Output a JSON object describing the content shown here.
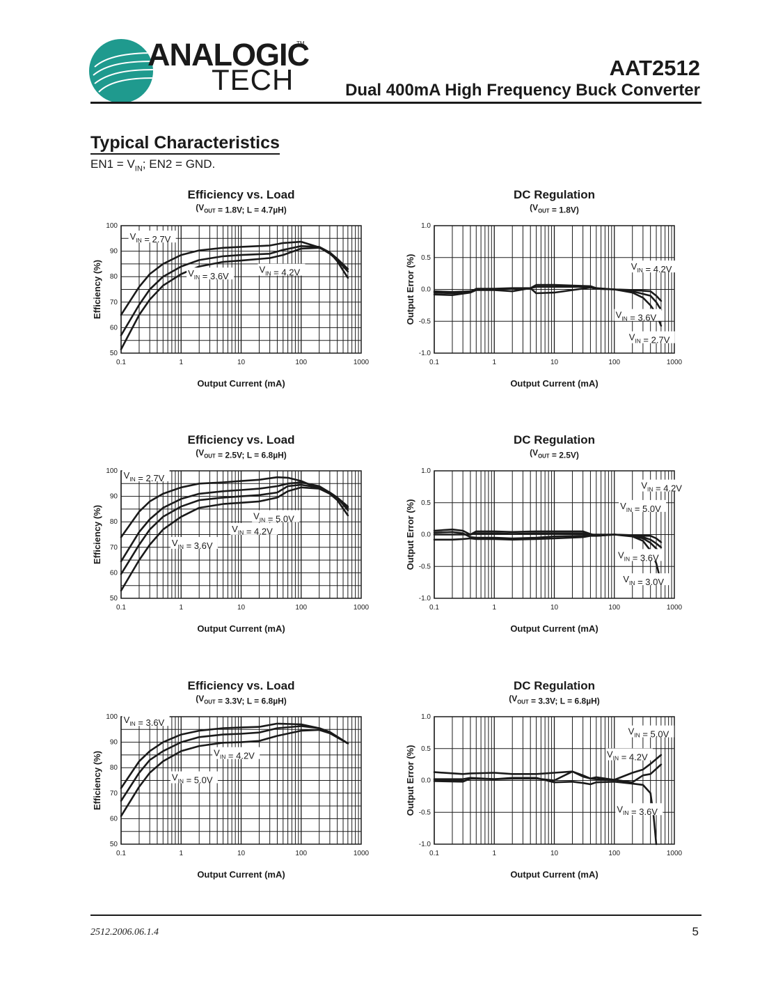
{
  "header": {
    "logo": {
      "line1": "ANALOGIC",
      "line2": "TECH",
      "tm": "TM",
      "brand_color": "#1f9a8e"
    },
    "title": "AAT2512",
    "subtitle": "Dual 400mA High Frequency Buck Converter"
  },
  "section": {
    "title": "Typical Characteristics",
    "condition_prefix": "EN1 = V",
    "condition_sub": "IN",
    "condition_suffix": "; EN2 = GND."
  },
  "footer": {
    "doc_code": "2512.2006.06.1.4",
    "page_number": "5"
  },
  "chart_data": [
    {
      "id": "eff-1v8",
      "type": "line",
      "title": "Efficiency vs. Load",
      "subtitle": "(VOUT = 1.8V; L = 4.7µH)",
      "xlabel": "Output Current (mA)",
      "ylabel": "Efficiency (%)",
      "xscale": "log",
      "xlim": [
        0.1,
        1000
      ],
      "ylim": [
        50,
        100
      ],
      "xticks": [
        "0.1",
        "1",
        "10",
        "100",
        "1000"
      ],
      "yticks": [
        "50",
        "60",
        "70",
        "80",
        "90",
        "100"
      ],
      "grid": true,
      "series": [
        {
          "name": "VIN = 2.7V",
          "x": [
            0.1,
            0.2,
            0.3,
            0.5,
            1,
            2,
            5,
            10,
            30,
            50,
            100,
            200,
            300,
            400,
            600
          ],
          "y": [
            65,
            76,
            81,
            85,
            88.5,
            90.3,
            91.3,
            91.7,
            92.2,
            93.2,
            93.7,
            91.5,
            89,
            86.5,
            82
          ]
        },
        {
          "name": "VIN = 3.6V",
          "x": [
            0.1,
            0.2,
            0.3,
            0.5,
            1,
            2,
            5,
            10,
            30,
            50,
            100,
            200,
            300,
            400,
            600
          ],
          "y": [
            57,
            69,
            75,
            80,
            84,
            86.5,
            88,
            88.5,
            89,
            90.5,
            92,
            91.7,
            89.5,
            87,
            83
          ]
        },
        {
          "name": "VIN = 4.2V",
          "x": [
            0.1,
            0.2,
            0.3,
            0.5,
            1,
            2,
            5,
            10,
            30,
            50,
            100,
            200,
            300,
            400,
            600
          ],
          "y": [
            51.5,
            65,
            71,
            76.5,
            81,
            84,
            85.8,
            86.3,
            87.3,
            88.5,
            91,
            91.3,
            89.5,
            86,
            79.5
          ]
        }
      ],
      "labels": [
        {
          "text": "2.7V",
          "x": 0.14,
          "y": 94.5
        },
        {
          "text": "3.6V",
          "x": 1.3,
          "y": 80
        },
        {
          "text": "4.2V",
          "x": 20,
          "y": 81.5
        }
      ]
    },
    {
      "id": "reg-1v8",
      "type": "line",
      "title": "DC Regulation",
      "subtitle": "(VOUT = 1.8V)",
      "xlabel": "Output Current (mA)",
      "ylabel": "Output Error (%)",
      "xscale": "log",
      "xlim": [
        0.1,
        1000
      ],
      "ylim": [
        -1.0,
        1.0
      ],
      "xticks": [
        "0.1",
        "1",
        "10",
        "100",
        "1000"
      ],
      "yticks": [
        "-1.0",
        "-0.5",
        "0.0",
        "0.5",
        "1.0"
      ],
      "grid": true,
      "series": [
        {
          "name": "VIN = 4.2V",
          "x": [
            0.1,
            0.2,
            0.4,
            0.5,
            1,
            2,
            4,
            5,
            10,
            40,
            50,
            100,
            200,
            400,
            500,
            600
          ],
          "y": [
            -0.03,
            -0.04,
            -0.03,
            0.0,
            0.0,
            0.01,
            0.02,
            0.07,
            0.07,
            0.05,
            0.02,
            0.0,
            -0.01,
            -0.03,
            -0.1,
            -0.18
          ]
        },
        {
          "name": "VIN = 3.6V",
          "x": [
            0.1,
            0.2,
            0.4,
            0.5,
            1,
            2,
            4,
            5,
            10,
            40,
            50,
            100,
            200,
            400,
            500,
            600
          ],
          "y": [
            -0.05,
            -0.06,
            -0.04,
            0.01,
            0.01,
            0.02,
            0.02,
            0.04,
            0.04,
            0.04,
            0.01,
            0.0,
            -0.03,
            -0.1,
            -0.2,
            -0.32
          ]
        },
        {
          "name": "VIN = 2.7V",
          "x": [
            0.1,
            0.2,
            0.4,
            0.5,
            1,
            2,
            4,
            5,
            10,
            40,
            50,
            100,
            200,
            300,
            400,
            500,
            600
          ],
          "y": [
            -0.08,
            -0.09,
            -0.05,
            -0.01,
            -0.01,
            -0.03,
            0.02,
            -0.06,
            -0.05,
            0.03,
            0.01,
            0.0,
            -0.05,
            -0.13,
            -0.25,
            -0.38,
            -0.57
          ]
        }
      ],
      "labels": [
        {
          "text": "4.2V",
          "x": 190,
          "y": 0.31
        },
        {
          "text": "3.6V",
          "x": 105,
          "y": -0.45
        },
        {
          "text": "2.7V",
          "x": 175,
          "y": -0.8
        }
      ]
    },
    {
      "id": "eff-2v5",
      "type": "line",
      "title": "Efficiency vs. Load",
      "subtitle": "(VOUT = 2.5V; L = 6.8µH)",
      "xlabel": "Output Current (mA)",
      "ylabel": "Efficiency (%)",
      "xscale": "log",
      "xlim": [
        0.1,
        1000
      ],
      "ylim": [
        50,
        100
      ],
      "xticks": [
        "0.1",
        "1",
        "10",
        "100",
        "1000"
      ],
      "yticks": [
        "50",
        "60",
        "70",
        "80",
        "90",
        "100"
      ],
      "grid": true,
      "series": [
        {
          "name": "VIN = 2.7V",
          "x": [
            0.1,
            0.2,
            0.3,
            0.5,
            1,
            2,
            5,
            10,
            20,
            40,
            60,
            100,
            200,
            300,
            400,
            600
          ],
          "y": [
            74,
            84,
            88,
            91,
            93.5,
            95,
            95.5,
            96,
            96.5,
            97.5,
            97.3,
            96,
            93,
            91,
            88.5,
            82.5
          ]
        },
        {
          "name": "VIN = 3.6V",
          "x": [
            0.1,
            0.2,
            0.3,
            0.5,
            1,
            2,
            5,
            10,
            20,
            40,
            60,
            100,
            200,
            300,
            400,
            600
          ],
          "y": [
            64.5,
            76,
            81,
            85.5,
            89,
            91,
            92,
            92.5,
            93,
            94,
            95,
            95.5,
            94,
            91.5,
            89.5,
            84.5
          ]
        },
        {
          "name": "VIN = 4.2V",
          "x": [
            0.1,
            0.2,
            0.3,
            0.5,
            1,
            2,
            5,
            10,
            20,
            40,
            60,
            100,
            200,
            300,
            400,
            600
          ],
          "y": [
            59.5,
            71,
            77,
            82,
            86,
            88.5,
            89.5,
            90,
            90.5,
            91.5,
            94,
            94.5,
            93.5,
            91.5,
            89.5,
            85.5
          ]
        },
        {
          "name": "VIN = 5.0V",
          "x": [
            0.1,
            0.2,
            0.3,
            0.5,
            1,
            2,
            5,
            10,
            20,
            40,
            60,
            100,
            200,
            300,
            400,
            600
          ],
          "y": [
            53,
            65,
            71,
            77,
            82,
            85.5,
            87,
            87.5,
            88,
            89.5,
            92,
            93.5,
            93,
            91.5,
            89.5,
            86
          ]
        }
      ],
      "labels": [
        {
          "text": "2.7V",
          "x": 0.11,
          "y": 97
        },
        {
          "text": "5.0V",
          "x": 16,
          "y": 81
        },
        {
          "text": "4.2V",
          "x": 7,
          "y": 76
        },
        {
          "text": "3.6V",
          "x": 0.7,
          "y": 70.5
        }
      ]
    },
    {
      "id": "reg-2v5",
      "type": "line",
      "title": "DC Regulation",
      "subtitle": "(VOUT = 2.5V)",
      "xlabel": "Output Current (mA)",
      "ylabel": "Output Error (%)",
      "xscale": "log",
      "xlim": [
        0.1,
        1000
      ],
      "ylim": [
        -1.0,
        1.0
      ],
      "xticks": [
        "0.1",
        "1",
        "10",
        "100",
        "1000"
      ],
      "yticks": [
        "-1.0",
        "-0.5",
        "0.0",
        "0.5",
        "1.0"
      ],
      "grid": true,
      "series": [
        {
          "name": "VIN = 4.2V",
          "x": [
            0.1,
            0.2,
            0.3,
            0.4,
            0.5,
            1,
            2,
            5,
            10,
            30,
            40,
            50,
            100,
            200,
            400,
            500,
            600
          ],
          "y": [
            0.06,
            0.08,
            0.06,
            0.0,
            0.05,
            0.05,
            0.04,
            0.05,
            0.05,
            0.05,
            0.01,
            -0.02,
            0.0,
            -0.02,
            -0.02,
            -0.06,
            -0.12
          ]
        },
        {
          "name": "VIN = 5.0V",
          "x": [
            0.1,
            0.2,
            0.3,
            0.4,
            0.5,
            1,
            2,
            5,
            10,
            30,
            40,
            50,
            100,
            200,
            300,
            400,
            500,
            600
          ],
          "y": [
            0.03,
            0.04,
            0.02,
            -0.04,
            -0.05,
            -0.05,
            -0.06,
            -0.05,
            -0.03,
            -0.02,
            0.0,
            0.0,
            0.0,
            -0.01,
            -0.04,
            -0.08,
            -0.14,
            -0.2
          ]
        },
        {
          "name": "VIN = 3.6V",
          "x": [
            0.1,
            0.2,
            0.3,
            0.4,
            0.5,
            1,
            2,
            5,
            10,
            30,
            40,
            50,
            100,
            200,
            300,
            400,
            500,
            600
          ],
          "y": [
            0.0,
            0.0,
            0.0,
            0.0,
            0.02,
            0.02,
            0.01,
            0.02,
            0.02,
            0.02,
            0.0,
            -0.02,
            0.0,
            -0.02,
            -0.06,
            -0.13,
            -0.22,
            -0.32
          ]
        },
        {
          "name": "VIN = 3.0V",
          "x": [
            0.1,
            0.2,
            0.3,
            0.4,
            0.5,
            1,
            2,
            5,
            10,
            30,
            40,
            50,
            100,
            200,
            300,
            400,
            500,
            600
          ],
          "y": [
            -0.08,
            -0.08,
            -0.07,
            -0.06,
            -0.07,
            -0.07,
            -0.08,
            -0.07,
            -0.06,
            -0.04,
            -0.02,
            -0.02,
            0.0,
            -0.03,
            -0.1,
            -0.25,
            -0.45,
            -0.75
          ]
        }
      ],
      "labels": [
        {
          "text": "4.2V",
          "x": 280,
          "y": 0.72
        },
        {
          "text": "5.0V",
          "x": 125,
          "y": 0.4
        },
        {
          "text": "3.6V",
          "x": 115,
          "y": -0.37
        },
        {
          "text": "3.0V",
          "x": 140,
          "y": -0.75
        }
      ]
    },
    {
      "id": "eff-3v3",
      "type": "line",
      "title": "Efficiency vs. Load",
      "subtitle": "(VOUT = 3.3V; L = 6.8µH)",
      "xlabel": "Output Current (mA)",
      "ylabel": "Efficiency (%)",
      "xscale": "log",
      "xlim": [
        0.1,
        1000
      ],
      "ylim": [
        50,
        100
      ],
      "xticks": [
        "0.1",
        "1",
        "10",
        "100",
        "1000"
      ],
      "yticks": [
        "50",
        "60",
        "70",
        "80",
        "90",
        "100"
      ],
      "grid": true,
      "series": [
        {
          "name": "VIN = 3.6V",
          "x": [
            0.1,
            0.2,
            0.3,
            0.5,
            1,
            2,
            5,
            10,
            20,
            40,
            100,
            200,
            300,
            600
          ],
          "y": [
            72,
            82.5,
            86.5,
            90,
            93,
            94.5,
            95.5,
            95.8,
            96,
            97.3,
            97,
            95.5,
            94,
            89.5
          ]
        },
        {
          "name": "VIN = 4.2V",
          "x": [
            0.1,
            0.2,
            0.3,
            0.5,
            1,
            2,
            5,
            10,
            20,
            40,
            100,
            200,
            300,
            600
          ],
          "y": [
            67,
            78,
            83,
            86.5,
            90,
            92,
            93,
            93.3,
            93.8,
            95.5,
            96.3,
            95.5,
            94,
            89.5
          ]
        },
        {
          "name": "VIN = 5.0V",
          "x": [
            0.1,
            0.2,
            0.3,
            0.5,
            1,
            2,
            5,
            10,
            20,
            40,
            100,
            200,
            300,
            600
          ],
          "y": [
            61,
            72.5,
            78,
            82.5,
            86.5,
            88.5,
            89.8,
            90,
            90.5,
            92.5,
            94.5,
            94.8,
            93.5,
            89.5
          ]
        }
      ],
      "labels": [
        {
          "text": "3.6V",
          "x": 0.11,
          "y": 97.5
        },
        {
          "text": "4.2V",
          "x": 3.5,
          "y": 84.5
        },
        {
          "text": "5.0V",
          "x": 0.7,
          "y": 75
        }
      ]
    },
    {
      "id": "reg-3v3",
      "type": "line",
      "title": "DC Regulation",
      "subtitle": "(VOUT = 3.3V; L = 6.8µH)",
      "xlabel": "Output Current (mA)",
      "ylabel": "Output Error (%)",
      "xscale": "log",
      "xlim": [
        0.1,
        1000
      ],
      "ylim": [
        -1.0,
        1.0
      ],
      "xticks": [
        "0.1",
        "1",
        "10",
        "100",
        "1000"
      ],
      "yticks": [
        "-1.0",
        "-0.5",
        "0.0",
        "0.5",
        "1.0"
      ],
      "grid": true,
      "series": [
        {
          "name": "VIN = 5.0V",
          "x": [
            0.1,
            0.3,
            0.4,
            1,
            2,
            5,
            10,
            20,
            30,
            40,
            50,
            100,
            200,
            300,
            400,
            600
          ],
          "y": [
            0.13,
            0.1,
            0.11,
            0.12,
            0.1,
            0.1,
            0.12,
            0.14,
            0.08,
            0.03,
            0.02,
            0.01,
            0.12,
            0.17,
            0.26,
            0.4
          ]
        },
        {
          "name": "VIN = 4.2V",
          "x": [
            0.1,
            0.3,
            0.4,
            1,
            2,
            5,
            10,
            20,
            30,
            40,
            50,
            100,
            200,
            300,
            400,
            600
          ],
          "y": [
            0.02,
            0.02,
            0.04,
            0.02,
            0.03,
            0.03,
            0.0,
            0.14,
            0.06,
            0.03,
            0.05,
            0.01,
            -0.03,
            0.08,
            0.1,
            0.25
          ]
        },
        {
          "name": "VIN = 3.6V",
          "x": [
            0.1,
            0.3,
            0.4,
            1,
            2,
            5,
            10,
            20,
            30,
            40,
            50,
            100,
            200,
            300,
            400,
            450,
            500
          ],
          "y": [
            -0.01,
            -0.02,
            0.03,
            0.02,
            0.04,
            0.04,
            -0.03,
            -0.02,
            -0.04,
            -0.06,
            -0.03,
            -0.02,
            -0.05,
            -0.07,
            -0.2,
            -0.55,
            -1.0
          ]
        }
      ],
      "labels": [
        {
          "text": "5.0V",
          "x": 170,
          "y": 0.72
        },
        {
          "text": "4.2V",
          "x": 75,
          "y": 0.36
        },
        {
          "text": "3.6V",
          "x": 110,
          "y": -0.5
        }
      ]
    }
  ]
}
